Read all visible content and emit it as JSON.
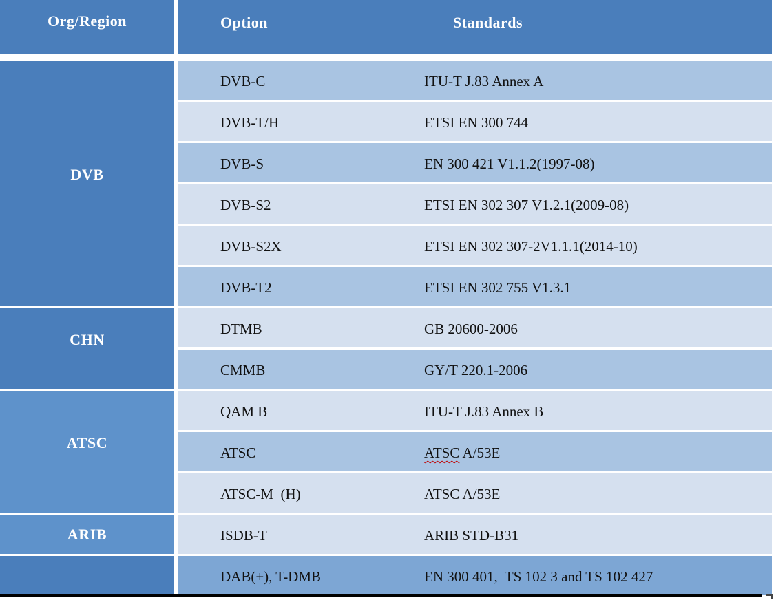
{
  "colors": {
    "header_blue": "#4a7ebb",
    "section_soft_blue": "#5e92cb",
    "row_medium": "#a9c4e2",
    "row_light": "#d5e0ef",
    "row_accent": "#7da6d4",
    "header_text": "#ffffff",
    "body_text": "#111111",
    "spellcheck_underline": "#c00000",
    "bottom_rule": "#000000"
  },
  "table": {
    "headers": [
      "Org/Region",
      "Option",
      "Standards"
    ],
    "sections": [
      {
        "org": "DVB",
        "tone": "dark",
        "rows": [
          {
            "option": "DVB-C",
            "standard": "ITU-T J.83 Annex A",
            "shade": "medium"
          },
          {
            "option": "DVB-T/H",
            "standard": "ETSI EN 300 744",
            "shade": "light"
          },
          {
            "option": "DVB-S",
            "standard": "EN 300 421 V1.1.2(1997-08)",
            "shade": "medium"
          },
          {
            "option": "DVB-S2",
            "standard": "ETSI EN 302 307 V1.2.1(2009-08)",
            "shade": "light"
          },
          {
            "option": "DVB-S2X",
            "standard": "ETSI EN 302 307-2V1.1.1(2014-10)",
            "shade": "light"
          },
          {
            "option": "DVB-T2",
            "standard": "ETSI EN 302 755 V1.3.1",
            "shade": "medium"
          }
        ]
      },
      {
        "org": "CHN",
        "tone": "dark",
        "rows": [
          {
            "option": "DTMB",
            "standard": "GB 20600-2006",
            "shade": "light"
          },
          {
            "option": "CMMB",
            "standard": "GY/T 220.1-2006",
            "shade": "medium"
          }
        ]
      },
      {
        "org": "ATSC",
        "tone": "soft",
        "rows": [
          {
            "option": "QAM B",
            "standard": "ITU-T J.83 Annex B",
            "shade": "light"
          },
          {
            "option": "ATSC",
            "standard": "ATSC A/53E",
            "shade": "medium",
            "spellcheck_word": "ATSC"
          },
          {
            "option": "ATSC-M  (H)",
            "standard": "ATSC A/53E",
            "shade": "light"
          }
        ]
      },
      {
        "org": "ARIB",
        "tone": "soft",
        "rows": [
          {
            "option": "ISDB-T",
            "standard": "ARIB STD-B31",
            "shade": "light"
          }
        ]
      },
      {
        "org": "",
        "tone": "dark",
        "rows": [
          {
            "option": "DAB(+), T-DMB",
            "standard": "EN 300 401,  TS 102 3 and TS 102 427",
            "shade": "accent"
          }
        ]
      }
    ]
  }
}
